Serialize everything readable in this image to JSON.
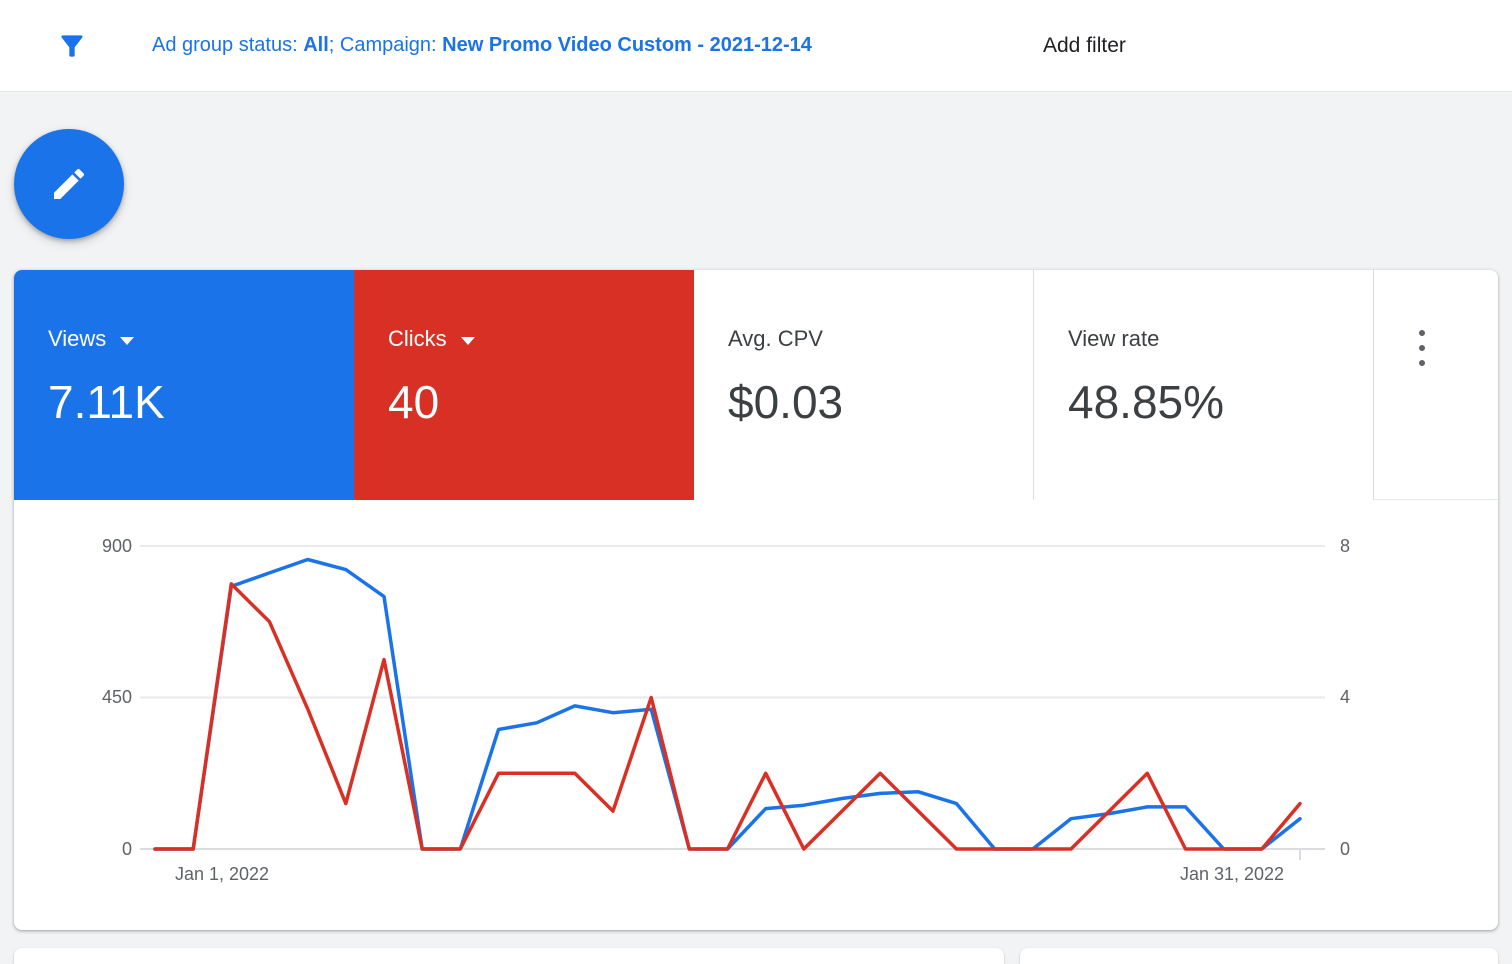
{
  "filter_bar": {
    "segments": [
      {
        "text": "Ad group status: "
      },
      {
        "text": "All"
      },
      {
        "text": "; Campaign: "
      },
      {
        "text": "New Promo Video Custom - 2021-12-14"
      }
    ],
    "add_filter_label": "Add filter"
  },
  "metrics": {
    "views": {
      "label": "Views",
      "value": "7.11K",
      "bg": "#1a73e8"
    },
    "clicks": {
      "label": "Clicks",
      "value": "40",
      "bg": "#d93025"
    },
    "avg_cpv": {
      "label": "Avg. CPV",
      "value": "$0.03"
    },
    "view_rate": {
      "label": "View rate",
      "value": "48.85%"
    }
  },
  "colors": {
    "views_blue": "#1a73e8",
    "clicks_red": "#d93025",
    "text_dark": "#3c4043",
    "text_gray": "#5f6368",
    "background": "#f1f3f4"
  },
  "chart_data": {
    "type": "line",
    "x_unit": "Days of January 2022 (Jan 1 - Jan 31)",
    "x_tick_labels": [
      "Jan 1, 2022",
      "Jan 31, 2022"
    ],
    "grid": "horizontal",
    "legend": "none",
    "left_axis": {
      "label": "Views",
      "max": 900,
      "ticks": [
        900,
        450,
        0
      ]
    },
    "right_axis": {
      "label": "Clicks",
      "max": 8,
      "ticks": [
        8,
        4,
        0
      ]
    },
    "series": [
      {
        "name": "Views",
        "axis": "left",
        "color": "#1a73e8",
        "values": [
          0,
          0,
          780,
          820,
          860,
          830,
          750,
          0,
          0,
          355,
          375,
          425,
          405,
          415,
          0,
          0,
          120,
          130,
          150,
          165,
          170,
          135,
          0,
          0,
          90,
          105,
          125,
          125,
          0,
          0,
          90
        ]
      },
      {
        "name": "Clicks",
        "axis": "right",
        "color": "#d93025",
        "values": [
          0,
          0,
          7,
          6,
          3.7,
          1.2,
          5,
          0,
          0,
          2,
          2,
          2,
          1,
          4,
          0,
          0,
          2,
          0,
          1,
          2,
          1,
          0,
          0,
          0,
          0,
          1,
          2,
          0,
          0,
          0,
          1.2
        ]
      }
    ]
  }
}
